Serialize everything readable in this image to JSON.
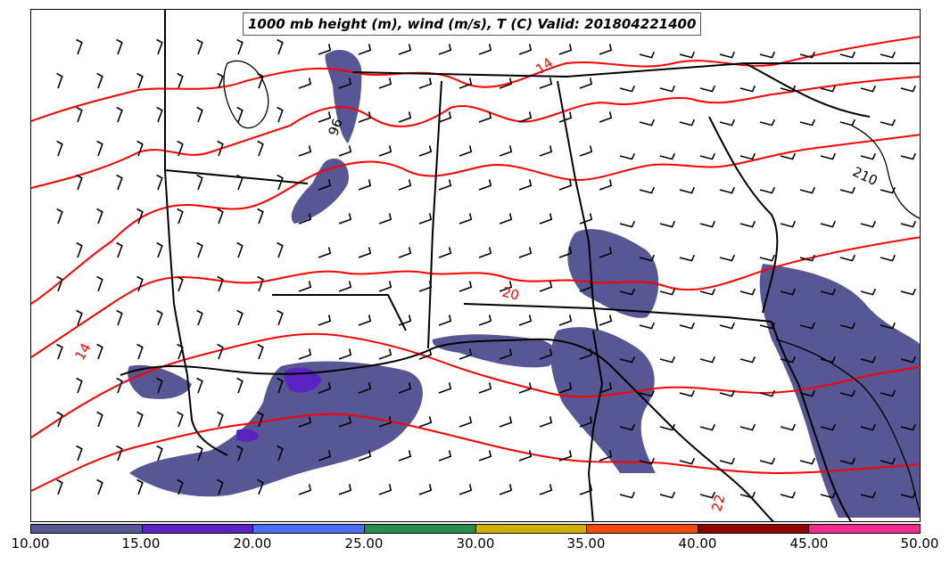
{
  "title": "1000 mb height (m), wind (m/s), T (C) Valid: 201804221400",
  "contour_labels": {
    "temp": [
      "14",
      "20",
      "14",
      "22"
    ],
    "height": [
      "96",
      "210"
    ]
  },
  "colorbar": {
    "colors": [
      "#575795",
      "#5b24c0",
      "#4a6ef5",
      "#2b8a4e",
      "#d2b00a",
      "#f04a0b",
      "#900000",
      "#f02d8a"
    ],
    "ticks": [
      "10.00",
      "15.00",
      "20.00",
      "25.00",
      "30.00",
      "35.00",
      "40.00",
      "45.00",
      "50.00"
    ]
  },
  "style": {
    "precip_fill": "#575795",
    "precip_heavy": "#5b24c0",
    "temp_contour": "#ff0000",
    "height_contour": "#000000",
    "border": "#000000"
  }
}
